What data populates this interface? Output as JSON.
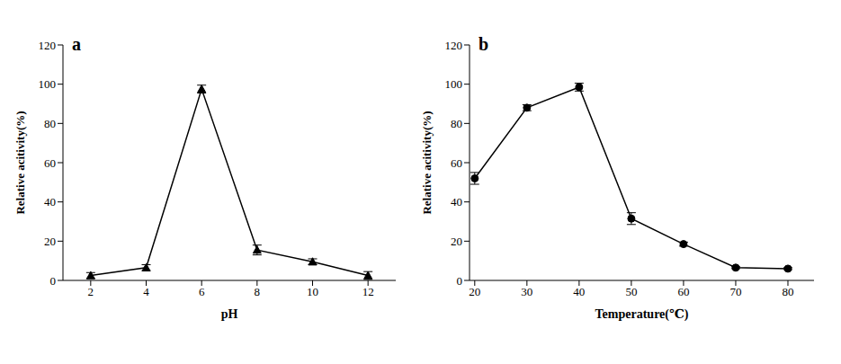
{
  "chart_data": [
    {
      "type": "line",
      "title": "a",
      "x_label": "pH",
      "y_label": "Relative acitivity(%)",
      "x": [
        2,
        4,
        6,
        8,
        10,
        12
      ],
      "values": [
        2.5,
        6.5,
        97.5,
        15.5,
        9.5,
        2.5
      ],
      "errors": [
        1.5,
        1.5,
        2,
        2.5,
        1.5,
        2
      ],
      "xlim": [
        1,
        13
      ],
      "xticks": [
        2,
        4,
        6,
        8,
        10,
        12
      ],
      "ylim": [
        0,
        120
      ],
      "yticks": [
        0,
        20,
        40,
        60,
        80,
        100,
        120
      ],
      "color": "#000000",
      "marker": "triangle",
      "grid": false
    },
    {
      "type": "line",
      "title": "b",
      "x_label": "Temperature(℃)",
      "y_label": "Relative acitivity(%)",
      "x": [
        20,
        30,
        40,
        50,
        60,
        70,
        80
      ],
      "values": [
        52,
        88,
        98.5,
        31.5,
        18.5,
        6.5,
        6
      ],
      "errors": [
        3,
        1.5,
        2,
        3,
        1,
        0.5,
        0.5
      ],
      "xlim": [
        19,
        85
      ],
      "xticks": [
        20,
        30,
        40,
        50,
        60,
        70,
        80
      ],
      "ylim": [
        0,
        120
      ],
      "yticks": [
        0,
        20,
        40,
        60,
        80,
        100,
        120
      ],
      "color": "#000000",
      "marker": "circle",
      "grid": false
    }
  ]
}
